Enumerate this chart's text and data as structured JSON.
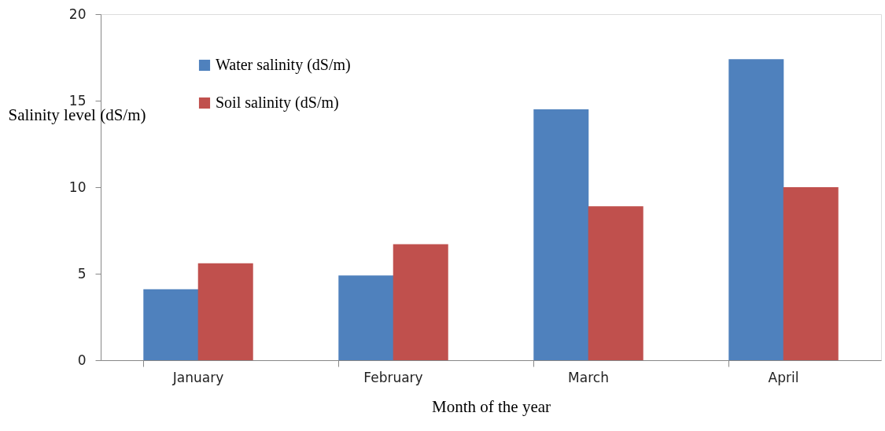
{
  "chart_data": {
    "type": "bar",
    "xlabel": "Month of the year",
    "ylabel": "Salinity level (dS/m)",
    "categories": [
      "January",
      "February",
      "March",
      "April"
    ],
    "series": [
      {
        "name": "Water salinity (dS/m)",
        "color": "#4f81bd",
        "values": [
          4.1,
          4.9,
          14.5,
          17.4
        ]
      },
      {
        "name": "Soil salinity (dS/m)",
        "color": "#c0504d",
        "values": [
          5.6,
          6.7,
          8.9,
          10.0
        ]
      }
    ],
    "ylim": [
      0,
      20
    ],
    "yticks": [
      0,
      5,
      10,
      15,
      20
    ],
    "grid": false,
    "legend": "top left"
  }
}
